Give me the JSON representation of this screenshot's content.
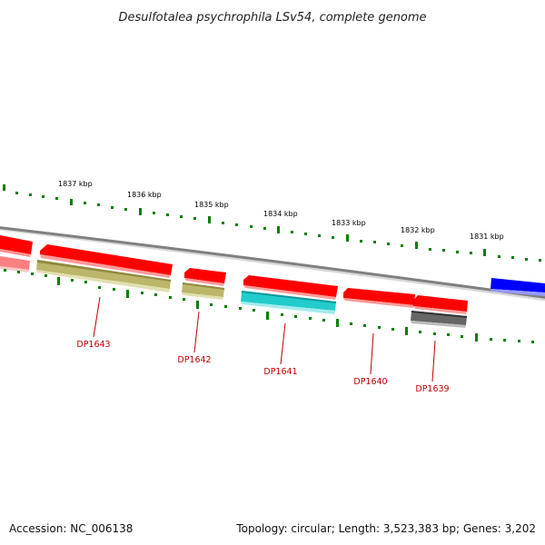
{
  "title": "Desulfotalea psychrophila LSv54, complete genome",
  "footer": {
    "accession": "Accession: NC_006138",
    "summary": "Topology: circular; Length: 3,523,383 bp; Genes: 3,202"
  },
  "scale_labels": [
    "1837 kbp",
    "1836 kbp",
    "1835 kbp",
    "1834 kbp",
    "1833 kbp",
    "1832 kbp",
    "1831 kbp"
  ],
  "gene_labels": [
    "DP1643",
    "DP1642",
    "DP1641",
    "DP1640",
    "DP1639"
  ],
  "colors": {
    "forward_cds": "#ff0000",
    "reverse_cds": "#c0ba6c",
    "reverse_cds_dp1641": "#22cccc",
    "reverse_cds_dp1639": "#666666",
    "other_strand_gene": "#0000ff",
    "tick_color": "#008000",
    "backbone": "#888888",
    "label_color": "#c00000"
  }
}
